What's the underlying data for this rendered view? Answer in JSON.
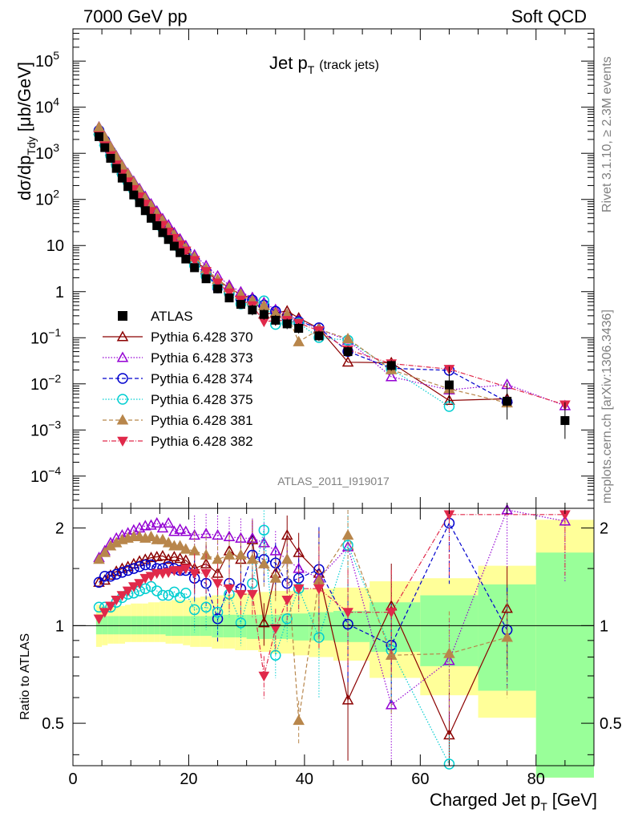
{
  "header": {
    "energy": "7000 GeV pp",
    "process": "Soft QCD"
  },
  "side": {
    "rivet": "Rivet 3.1.10, ≥ 2.3M events",
    "mcplots": "mcplots.cern.ch [arXiv:1306.3436]"
  },
  "chart_data": {
    "type": "scatter",
    "title": "Jet p_T (track jets)",
    "title_main": "Jet p",
    "title_sub": "T",
    "title_tail": "(track jets)",
    "analysis_id": "ATLAS_2011_I919017",
    "xlabel": "Charged Jet p_T [GeV]",
    "xlabel_main": "Charged Jet p",
    "xlabel_sub": "T",
    "xlabel_unit": "[GeV]",
    "ylabel": "dσ/dp_Tdy [μb/GeV]",
    "ylabel_a": "dσ/dp",
    "ylabel_sub": "Tdy",
    "ylabel_unit": "[μb/GeV]",
    "ratio_ylabel": "Ratio to ATLAS",
    "xlim": [
      0,
      90
    ],
    "ylim": [
      2e-05,
      500000
    ],
    "yscale": "log",
    "ratio_ylim": [
      0.37,
      2.3
    ],
    "ratio_yscale": "log",
    "x_ticks": [
      0,
      20,
      40,
      60,
      80
    ],
    "x_tick_labels": [
      "0",
      "20",
      "40",
      "60",
      "80"
    ],
    "y_ticks": [
      {
        "v": 100000,
        "b": "10",
        "e": "5"
      },
      {
        "v": 10000,
        "b": "10",
        "e": "4"
      },
      {
        "v": 1000,
        "b": "10",
        "e": "3"
      },
      {
        "v": 100,
        "b": "10",
        "e": "2"
      },
      {
        "v": 10,
        "b": "10",
        "e": ""
      },
      {
        "v": 1,
        "b": "1",
        "e": ""
      },
      {
        "v": 0.1,
        "b": "10",
        "e": "−1"
      },
      {
        "v": 0.01,
        "b": "10",
        "e": "−2"
      },
      {
        "v": 0.001,
        "b": "10",
        "e": "−3"
      },
      {
        "v": 0.0001,
        "b": "10",
        "e": "−4"
      }
    ],
    "ratio_ticks": [
      0.5,
      1,
      2
    ],
    "ratio_tick_labels": [
      "0.5",
      "1",
      "2"
    ],
    "x": [
      4.5,
      5.5,
      6.5,
      7.5,
      8.5,
      9.5,
      10.5,
      11.5,
      12.5,
      13.5,
      14.5,
      15.5,
      16.5,
      17.5,
      18.5,
      19.5,
      21,
      23,
      25,
      27,
      29,
      31,
      33,
      35,
      37,
      39,
      42.5,
      47.5,
      55,
      65,
      75,
      85
    ],
    "reference": {
      "name": "ATLAS",
      "y": [
        2300,
        1330,
        780,
        470,
        290,
        190,
        125,
        85,
        57,
        39,
        27,
        19,
        13.5,
        9.7,
        7,
        5.1,
        3.3,
        1.9,
        1.15,
        0.73,
        0.53,
        0.4,
        0.32,
        0.24,
        0.2,
        0.16,
        0.11,
        0.05,
        0.025,
        0.0095,
        0.0042,
        0.0016
      ]
    },
    "uncertainty_bands": {
      "stat_syst_lo": [
        0.86,
        0.87,
        0.88,
        0.88,
        0.88,
        0.89,
        0.89,
        0.89,
        0.89,
        0.89,
        0.89,
        0.89,
        0.88,
        0.88,
        0.88,
        0.87,
        0.86,
        0.86,
        0.85,
        0.85,
        0.84,
        0.84,
        0.83,
        0.82,
        0.82,
        0.81,
        0.8,
        0.78,
        0.69,
        0.61,
        0.52,
        0.34
      ],
      "stat_syst_hi": [
        1.16,
        1.15,
        1.15,
        1.15,
        1.15,
        1.16,
        1.17,
        1.17,
        1.17,
        1.18,
        1.18,
        1.19,
        1.19,
        1.2,
        1.2,
        1.2,
        1.22,
        1.23,
        1.24,
        1.25,
        1.26,
        1.26,
        1.27,
        1.28,
        1.28,
        1.29,
        1.3,
        1.31,
        1.37,
        1.4,
        1.53,
        2.12
      ],
      "stat_lo": [
        0.94,
        0.94,
        0.94,
        0.94,
        0.94,
        0.94,
        0.94,
        0.94,
        0.94,
        0.94,
        0.94,
        0.94,
        0.93,
        0.93,
        0.93,
        0.93,
        0.93,
        0.93,
        0.92,
        0.92,
        0.92,
        0.91,
        0.91,
        0.91,
        0.91,
        0.9,
        0.9,
        0.89,
        0.83,
        0.75,
        0.63,
        0.34
      ],
      "stat_hi": [
        1.07,
        1.07,
        1.07,
        1.07,
        1.07,
        1.07,
        1.07,
        1.07,
        1.07,
        1.07,
        1.07,
        1.07,
        1.07,
        1.07,
        1.07,
        1.07,
        1.07,
        1.07,
        1.08,
        1.08,
        1.08,
        1.08,
        1.08,
        1.08,
        1.09,
        1.09,
        1.1,
        1.11,
        1.18,
        1.24,
        1.34,
        1.68
      ]
    },
    "series": [
      {
        "name": "Pythia 6.428 370",
        "color": "#8B0000",
        "marker": "tri-up-open",
        "dash": "",
        "ratio": [
          1.36,
          1.38,
          1.43,
          1.47,
          1.5,
          1.52,
          1.55,
          1.58,
          1.6,
          1.62,
          1.63,
          1.64,
          1.6,
          1.63,
          1.61,
          1.59,
          1.5,
          1.55,
          1.45,
          1.7,
          1.6,
          1.84,
          1.02,
          1.45,
          1.9,
          1.68,
          1.45,
          0.59,
          1.15,
          0.46,
          1.13,
          null
        ]
      },
      {
        "name": "Pythia 6.428 373",
        "color": "#9400D3",
        "marker": "tri-up-open",
        "dash": "1.5,2",
        "ratio": [
          1.62,
          1.7,
          1.8,
          1.86,
          1.9,
          1.93,
          1.97,
          2.0,
          2.03,
          2.04,
          2.07,
          2.0,
          2.07,
          1.95,
          1.98,
          1.95,
          1.9,
          1.92,
          1.9,
          1.88,
          1.86,
          1.86,
          1.8,
          1.7,
          1.6,
          1.5,
          1.4,
          1.75,
          0.57,
          0.78,
          2.3,
          2.1
        ]
      },
      {
        "name": "Pythia 6.428 374",
        "color": "#0000CD",
        "marker": "circle-open",
        "dash": "5,3",
        "ratio": [
          1.36,
          1.42,
          1.42,
          1.44,
          1.46,
          1.48,
          1.5,
          1.52,
          1.54,
          1.54,
          1.5,
          1.5,
          1.52,
          1.5,
          1.48,
          1.48,
          1.4,
          1.35,
          1.05,
          1.35,
          1.3,
          1.65,
          1.6,
          1.56,
          1.35,
          1.4,
          1.49,
          1.01,
          0.87,
          2.07,
          0.97,
          null
        ]
      },
      {
        "name": "Pythia 6.428 375",
        "color": "#00CED1",
        "marker": "circle-open",
        "dash": "1.5,2",
        "ratio": [
          1.14,
          1.14,
          1.14,
          1.18,
          1.22,
          1.25,
          1.26,
          1.28,
          1.3,
          1.32,
          1.28,
          1.24,
          1.24,
          1.27,
          1.22,
          1.26,
          1.12,
          1.14,
          1.1,
          1.25,
          1.02,
          1.35,
          1.97,
          0.81,
          1.05,
          1.3,
          0.92,
          1.77,
          0.84,
          0.34,
          null,
          null
        ]
      },
      {
        "name": "Pythia 6.428 381",
        "color": "#B8864B",
        "marker": "tri-up-filled",
        "dash": "5,3",
        "ratio": [
          1.6,
          1.68,
          1.76,
          1.8,
          1.84,
          1.86,
          1.88,
          1.88,
          1.86,
          1.88,
          1.84,
          1.84,
          1.8,
          1.76,
          1.76,
          1.72,
          1.7,
          1.65,
          1.6,
          1.65,
          1.65,
          1.6,
          1.55,
          1.4,
          1.6,
          0.51,
          1.38,
          1.9,
          0.81,
          0.82,
          0.92,
          null
        ]
      },
      {
        "name": "Pythia 6.428 382",
        "color": "#E0294A",
        "marker": "tri-down-filled",
        "dash": "6,2,1,2",
        "ratio": [
          1.05,
          1.1,
          1.15,
          1.2,
          1.24,
          1.28,
          1.32,
          1.35,
          1.4,
          1.42,
          1.45,
          1.45,
          1.46,
          1.48,
          1.48,
          1.5,
          1.45,
          1.45,
          1.35,
          1.3,
          1.25,
          1.25,
          0.7,
          0.98,
          1.2,
          1.3,
          1.3,
          1.1,
          1.1,
          2.2,
          null,
          2.2
        ]
      }
    ]
  }
}
